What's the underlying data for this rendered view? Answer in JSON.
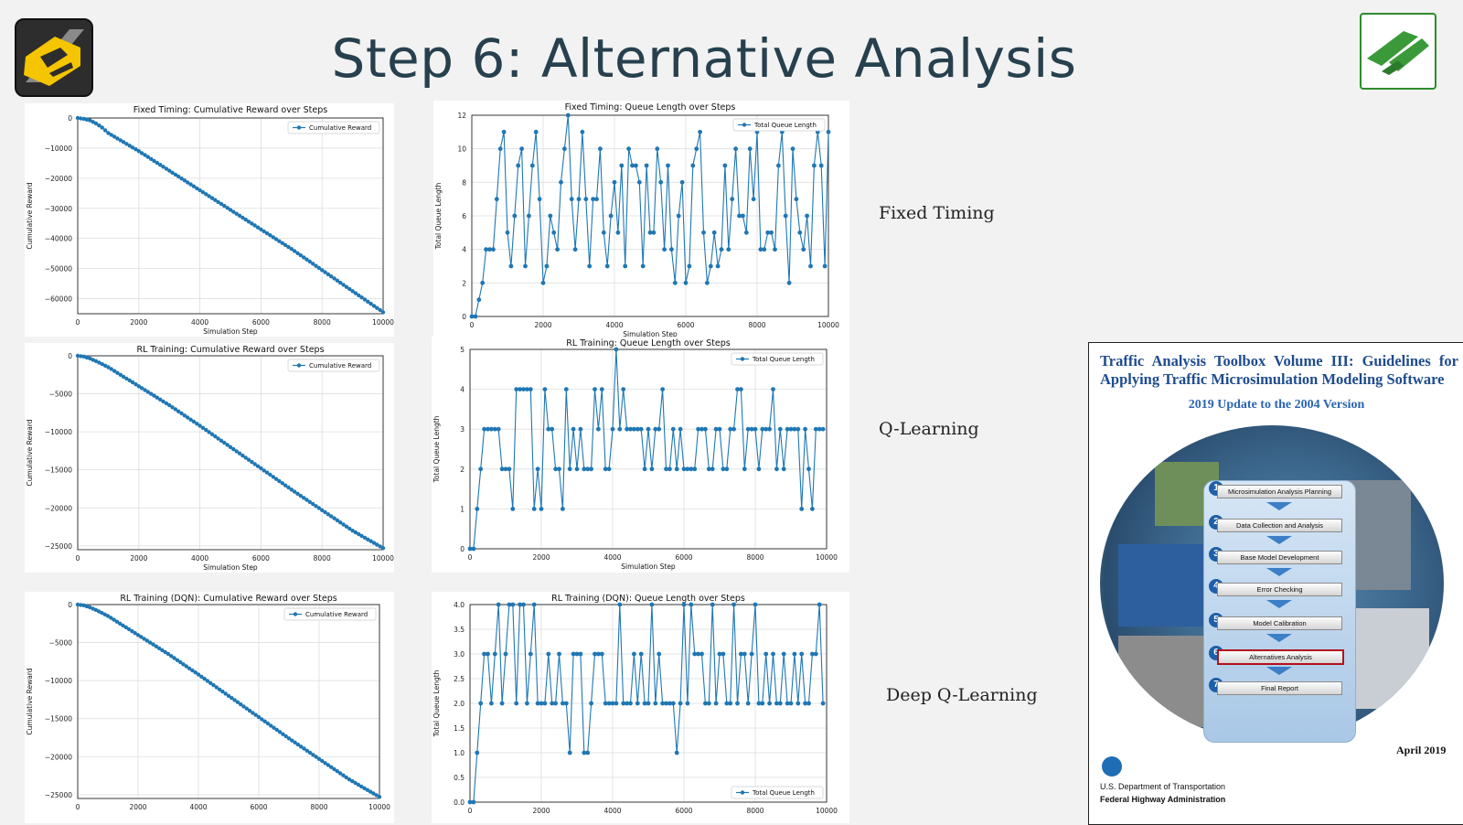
{
  "slide": {
    "title": "Step 6: Alternative Analysis",
    "row_labels": [
      "Fixed Timing",
      "Q-Learning",
      "Deep Q-Learning"
    ]
  },
  "colors": {
    "line": "#1f77b4",
    "title": "#27404e",
    "cover_title": "#1f4c8f"
  },
  "charts": [
    {
      "title": "Fixed Timing: Cumulative Reward over Steps",
      "xlabel": "Simulation Step",
      "ylabel": "Cumulative Reward",
      "legend": "Cumulative Reward",
      "xticks": [
        "0",
        "2000",
        "4000",
        "6000",
        "8000",
        "10000"
      ],
      "yticks": [
        "0",
        "−10000",
        "−20000",
        "−30000",
        "−40000",
        "−50000",
        "−60000"
      ]
    },
    {
      "title": "Fixed Timing: Queue Length over Steps",
      "xlabel": "Simulation Step",
      "ylabel": "Total Queue Length",
      "legend": "Total Queue Length",
      "xticks": [
        "0",
        "2000",
        "4000",
        "6000",
        "8000",
        "10000"
      ],
      "yticks": [
        "0",
        "2",
        "4",
        "6",
        "8",
        "10",
        "12"
      ]
    },
    {
      "title": "RL Training: Cumulative Reward over Steps",
      "xlabel": "Simulation Step",
      "ylabel": "Cumulative Reward",
      "legend": "Cumulative Reward",
      "xticks": [
        "0",
        "2000",
        "4000",
        "6000",
        "8000",
        "10000"
      ],
      "yticks": [
        "0",
        "−5000",
        "−10000",
        "−15000",
        "−20000",
        "−25000"
      ]
    },
    {
      "title": "RL Training: Queue Length over Steps",
      "xlabel": "Simulation Step",
      "ylabel": "Total Queue Length",
      "legend": "Total Queue Length",
      "xticks": [
        "0",
        "2000",
        "4000",
        "6000",
        "8000",
        "10000"
      ],
      "yticks": [
        "0",
        "1",
        "2",
        "3",
        "4",
        "5"
      ]
    },
    {
      "title": "RL Training (DQN): Cumulative Reward over Steps",
      "xlabel": "",
      "ylabel": "Cumulative Reward",
      "legend": "Cumulative Reward",
      "xticks": [
        "0",
        "2000",
        "4000",
        "6000",
        "8000",
        "10000"
      ],
      "yticks": [
        "0",
        "−5000",
        "−10000",
        "−15000",
        "−20000",
        "−25000"
      ]
    },
    {
      "title": "RL Training (DQN): Queue Length over Steps",
      "xlabel": "",
      "ylabel": "Total Queue Length",
      "legend": "Total Queue Length",
      "xticks": [
        "0",
        "2000",
        "4000",
        "6000",
        "8000",
        "10000"
      ],
      "yticks": [
        "0.0",
        "0.5",
        "1.0",
        "1.5",
        "2.0",
        "2.5",
        "3.0",
        "3.5",
        "4.0"
      ]
    }
  ],
  "chart_data": [
    {
      "type": "line",
      "title": "Fixed Timing: Cumulative Reward over Steps",
      "xlabel": "Simulation Step",
      "ylabel": "Cumulative Reward",
      "xlim": [
        0,
        10000
      ],
      "ylim": [
        -65000,
        0
      ],
      "series": [
        {
          "name": "Cumulative Reward",
          "x": [
            0,
            200,
            400,
            600,
            800,
            1000,
            2000,
            3000,
            4000,
            5000,
            6000,
            7000,
            8000,
            9000,
            10000
          ],
          "y": [
            0,
            -300,
            -800,
            -1800,
            -3200,
            -5000,
            -11000,
            -17500,
            -24000,
            -30500,
            -37000,
            -43500,
            -50500,
            -57500,
            -64500
          ]
        }
      ],
      "legend": "top-right",
      "grid": true
    },
    {
      "type": "line",
      "title": "Fixed Timing: Queue Length over Steps",
      "xlabel": "Simulation Step",
      "ylabel": "Total Queue Length",
      "xlim": [
        0,
        10000
      ],
      "ylim": [
        0,
        12
      ],
      "series": [
        {
          "name": "Total Queue Length",
          "x": [
            0,
            100,
            200,
            300,
            400,
            500,
            600,
            700,
            800,
            900,
            1000,
            1100,
            1200,
            1300,
            1400,
            1500,
            1600,
            1700,
            1800,
            1900,
            2000,
            2100,
            2200,
            2300,
            2400,
            2500,
            2600,
            2700,
            2800,
            2900,
            3000,
            3100,
            3200,
            3300,
            3400,
            3500,
            3600,
            3700,
            3800,
            3900,
            4000,
            4100,
            4200,
            4300,
            4400,
            4500,
            4600,
            4700,
            4800,
            4900,
            5000,
            5100,
            5200,
            5300,
            5400,
            5500,
            5600,
            5700,
            5800,
            5900,
            6000,
            6100,
            6200,
            6300,
            6400,
            6500,
            6600,
            6700,
            6800,
            6900,
            7000,
            7100,
            7200,
            7300,
            7400,
            7500,
            7600,
            7700,
            7800,
            7900,
            8000,
            8100,
            8200,
            8300,
            8400,
            8500,
            8600,
            8700,
            8800,
            8900,
            9000,
            9100,
            9200,
            9300,
            9400,
            9500,
            9600,
            9700,
            9800,
            9900,
            10000
          ],
          "y": [
            0,
            0,
            1,
            2,
            4,
            4,
            4,
            7,
            10,
            11,
            5,
            3,
            6,
            9,
            10,
            3,
            6,
            9,
            11,
            7,
            2,
            3,
            6,
            5,
            4,
            8,
            10,
            12,
            7,
            4,
            7,
            11,
            7,
            3,
            7,
            7,
            10,
            5,
            3,
            6,
            8,
            5,
            9,
            3,
            10,
            9,
            9,
            8,
            3,
            9,
            5,
            5,
            10,
            8,
            4,
            9,
            4,
            2,
            6,
            8,
            2,
            3,
            9,
            10,
            11,
            5,
            2,
            3,
            5,
            3,
            4,
            9,
            4,
            7,
            10,
            6,
            6,
            5,
            10,
            7,
            11,
            4,
            4,
            5,
            5,
            4,
            9,
            11,
            6,
            2,
            10,
            7,
            5,
            4,
            6,
            3,
            9,
            11,
            9,
            3,
            11
          ]
        }
      ],
      "legend": "top-right",
      "grid": true
    },
    {
      "type": "line",
      "title": "RL Training: Cumulative Reward over Steps",
      "xlabel": "Simulation Step",
      "ylabel": "Cumulative Reward",
      "xlim": [
        0,
        10000
      ],
      "ylim": [
        -25500,
        0
      ],
      "series": [
        {
          "name": "Cumulative Reward",
          "x": [
            0,
            200,
            400,
            600,
            1000,
            2000,
            3000,
            4000,
            5000,
            6000,
            7000,
            8000,
            9000,
            10000
          ],
          "y": [
            0,
            -100,
            -350,
            -700,
            -1500,
            -4000,
            -6500,
            -9200,
            -12000,
            -14800,
            -17600,
            -20300,
            -23000,
            -25300
          ]
        }
      ],
      "legend": "top-right",
      "grid": true
    },
    {
      "type": "line",
      "title": "RL Training: Queue Length over Steps",
      "xlabel": "Simulation Step",
      "ylabel": "Total Queue Length",
      "xlim": [
        0,
        10000
      ],
      "ylim": [
        0,
        5
      ],
      "series": [
        {
          "name": "Total Queue Length",
          "x": [
            0,
            100,
            200,
            300,
            400,
            500,
            600,
            700,
            800,
            900,
            1000,
            1100,
            1200,
            1300,
            1400,
            1500,
            1600,
            1700,
            1800,
            1900,
            2000,
            2100,
            2200,
            2300,
            2400,
            2500,
            2600,
            2700,
            2800,
            2900,
            3000,
            3100,
            3200,
            3300,
            3400,
            3500,
            3600,
            3700,
            3800,
            3900,
            4000,
            4100,
            4200,
            4300,
            4400,
            4500,
            4600,
            4700,
            4800,
            4900,
            5000,
            5100,
            5200,
            5300,
            5400,
            5500,
            5600,
            5700,
            5800,
            5900,
            6000,
            6100,
            6200,
            6300,
            6400,
            6500,
            6600,
            6700,
            6800,
            6900,
            7000,
            7100,
            7200,
            7300,
            7400,
            7500,
            7600,
            7700,
            7800,
            7900,
            8000,
            8100,
            8200,
            8300,
            8400,
            8500,
            8600,
            8700,
            8800,
            8900,
            9000,
            9100,
            9200,
            9300,
            9400,
            9500,
            9600,
            9700,
            9800,
            9900
          ],
          "y": [
            0,
            0,
            1,
            2,
            3,
            3,
            3,
            3,
            3,
            2,
            2,
            2,
            1,
            4,
            4,
            4,
            4,
            4,
            1,
            2,
            1,
            4,
            3,
            3,
            2,
            2,
            1,
            4,
            2,
            3,
            2,
            3,
            2,
            2,
            2,
            4,
            3,
            4,
            2,
            2,
            3,
            5,
            3,
            4,
            3,
            3,
            3,
            3,
            3,
            2,
            3,
            2,
            3,
            3,
            4,
            2,
            2,
            3,
            2,
            3,
            2,
            2,
            2,
            2,
            3,
            3,
            3,
            2,
            2,
            3,
            3,
            2,
            2,
            3,
            3,
            4,
            4,
            2,
            3,
            3,
            3,
            2,
            3,
            3,
            3,
            4,
            2,
            3,
            2,
            3,
            3,
            3,
            3,
            1,
            3,
            2,
            1,
            3,
            3,
            3
          ],
          "note": ""
        }
      ],
      "legend": "top-right",
      "grid": true
    },
    {
      "type": "line",
      "title": "RL Training (DQN): Cumulative Reward over Steps",
      "xlabel": "",
      "ylabel": "Cumulative Reward",
      "xlim": [
        0,
        10000
      ],
      "ylim": [
        -25500,
        0
      ],
      "series": [
        {
          "name": "Cumulative Reward",
          "x": [
            0,
            200,
            400,
            600,
            1000,
            2000,
            3000,
            4000,
            5000,
            6000,
            7000,
            8000,
            9000,
            10000
          ],
          "y": [
            0,
            -100,
            -350,
            -700,
            -1500,
            -4000,
            -6500,
            -9200,
            -12000,
            -14800,
            -17600,
            -20300,
            -23000,
            -25300
          ]
        }
      ],
      "legend": "top-right",
      "grid": true
    },
    {
      "type": "line",
      "title": "RL Training (DQN): Queue Length over Steps",
      "xlabel": "",
      "ylabel": "Total Queue Length",
      "xlim": [
        0,
        10000
      ],
      "ylim": [
        0,
        4
      ],
      "series": [
        {
          "name": "Total Queue Length",
          "x": [
            0,
            100,
            200,
            300,
            400,
            500,
            600,
            700,
            800,
            900,
            1000,
            1100,
            1200,
            1300,
            1400,
            1500,
            1600,
            1700,
            1800,
            1900,
            2000,
            2100,
            2200,
            2300,
            2400,
            2500,
            2600,
            2700,
            2800,
            2900,
            3000,
            3100,
            3200,
            3300,
            3400,
            3500,
            3600,
            3700,
            3800,
            3900,
            4000,
            4100,
            4200,
            4300,
            4400,
            4500,
            4600,
            4700,
            4800,
            4900,
            5000,
            5100,
            5200,
            5300,
            5400,
            5500,
            5600,
            5700,
            5800,
            5900,
            6000,
            6100,
            6200,
            6300,
            6400,
            6500,
            6600,
            6700,
            6800,
            6900,
            7000,
            7100,
            7200,
            7300,
            7400,
            7500,
            7600,
            7700,
            7800,
            7900,
            8000,
            8100,
            8200,
            8300,
            8400,
            8500,
            8600,
            8700,
            8800,
            8900,
            9000,
            9100,
            9200,
            9300,
            9400,
            9500,
            9600,
            9700,
            9800,
            9900
          ],
          "y": [
            0,
            0,
            1,
            2,
            3,
            3,
            2,
            3,
            4,
            2,
            3,
            4,
            4,
            2,
            4,
            4,
            2,
            3,
            4,
            2,
            2,
            2,
            3,
            2,
            2,
            3,
            2,
            2,
            1,
            3,
            3,
            3,
            1,
            1,
            2,
            3,
            3,
            3,
            2,
            2,
            2,
            2,
            4,
            2,
            2,
            2,
            3,
            2,
            3,
            2,
            2,
            4,
            2,
            3,
            2,
            2,
            2,
            2,
            1,
            2,
            4,
            2,
            4,
            3,
            3,
            3,
            2,
            2,
            4,
            2,
            3,
            3,
            2,
            2,
            4,
            2,
            3,
            3,
            2,
            3,
            4,
            2,
            2,
            3,
            2,
            3,
            2,
            2,
            3,
            2,
            2,
            3,
            2,
            3,
            2,
            2,
            3,
            3,
            4,
            2
          ],
          "note": ""
        }
      ],
      "legend": "bottom-right",
      "grid": true
    }
  ],
  "cover": {
    "title": "Traffic Analysis Toolbox Volume III: Guidelines for Applying Traffic Microsimulation Modeling Software",
    "subtitle": "2019 Update to the 2004 Version",
    "date": "April 2019",
    "dept_line1": "U.S. Department of Transportation",
    "dept_line2": "Federal Highway Administration",
    "steps": [
      {
        "num": "1",
        "label": "Microsimulation Analysis Planning"
      },
      {
        "num": "2",
        "label": "Data Collection and Analysis"
      },
      {
        "num": "3",
        "label": "Base Model Development"
      },
      {
        "num": "4",
        "label": "Error Checking"
      },
      {
        "num": "5",
        "label": "Model Calibration"
      },
      {
        "num": "6",
        "label": "Alternatives Analysis"
      },
      {
        "num": "7",
        "label": "Final Report"
      }
    ]
  }
}
